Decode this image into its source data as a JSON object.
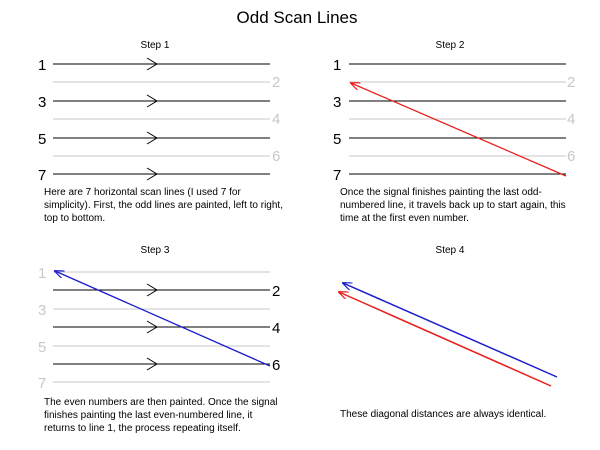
{
  "title": "Odd Scan Lines",
  "panels": [
    {
      "step": "Step 1",
      "labels": [
        "1",
        "2",
        "3",
        "4",
        "5",
        "6",
        "7"
      ],
      "caption": "Here are 7 horizontal scan lines (I used 7 for simplicity).  First, the odd lines are painted, left to right, top to bottom."
    },
    {
      "step": "Step 2",
      "labels": [
        "1",
        "2",
        "3",
        "4",
        "5",
        "6",
        "7"
      ],
      "caption": "Once the signal finishes painting the last odd-numbered line, it travels back up to start again, this time at the first even number."
    },
    {
      "step": "Step 3",
      "labels": [
        "1",
        "2",
        "3",
        "4",
        "5",
        "6",
        "7"
      ],
      "caption": "The even numbers are then painted.  Once the signal finishes painting the last even-numbered line, it returns to line 1, the process repeating itself."
    },
    {
      "step": "Step 4",
      "caption": "These diagonal distances are always identical."
    }
  ],
  "colors": {
    "retrace_red": "#e8201e",
    "retrace_blue": "#1c1ccc",
    "dim_line": "#c8c8c8",
    "ink": "#000000"
  }
}
